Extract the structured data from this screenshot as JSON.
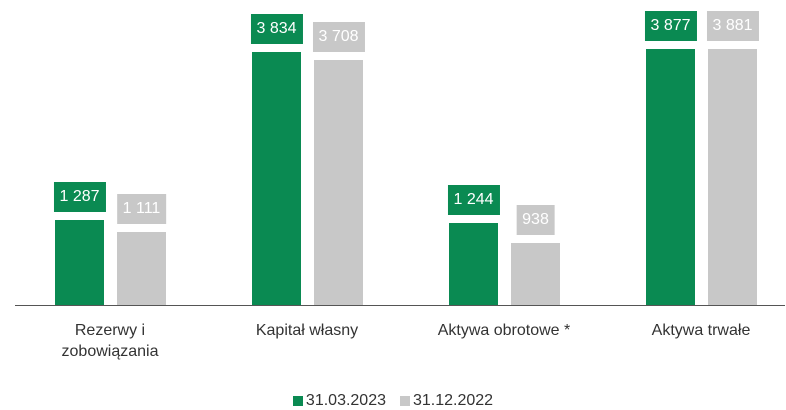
{
  "chart_data": {
    "type": "bar",
    "categories": [
      "Rezerwy i zobowiązania",
      "Kapitał własny",
      "Aktywa obrotowe *",
      "Aktywa trwałe"
    ],
    "series": [
      {
        "name": "31.03.2023",
        "color": "#0a8a52",
        "values": [
          1287,
          3834,
          1244,
          3877
        ],
        "value_labels": [
          "1 287",
          "3 834",
          "1 244",
          "3 877"
        ]
      },
      {
        "name": "31.12.2022",
        "color": "#c8c8c8",
        "values": [
          1111,
          3708,
          938,
          3881
        ],
        "value_labels": [
          "1 111",
          "3 708",
          "938",
          "3 881"
        ]
      }
    ]
  }
}
